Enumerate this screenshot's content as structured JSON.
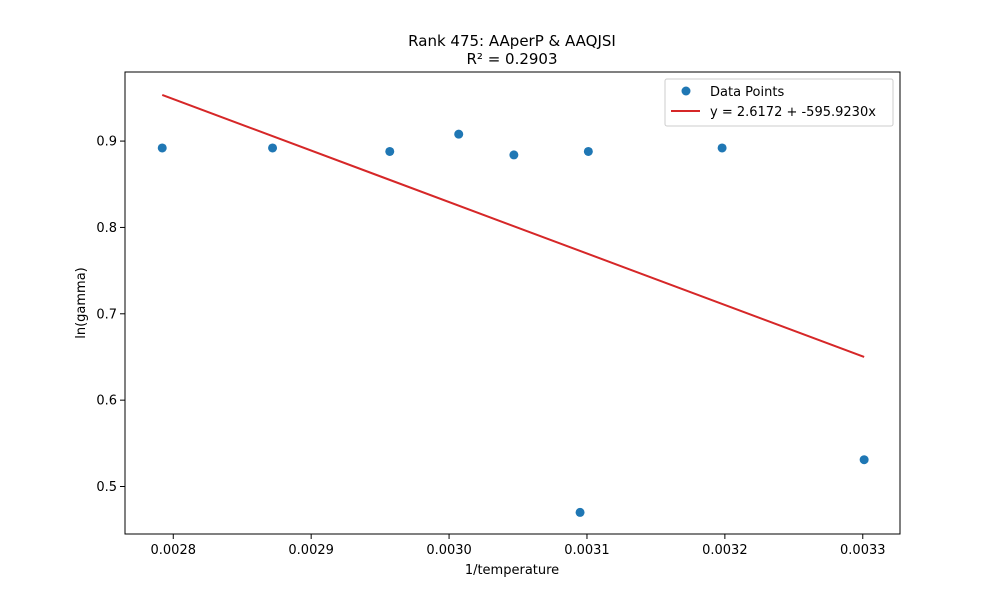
{
  "chart_data": {
    "type": "scatter",
    "title": "Rank 475: AAperP & AAQJSI",
    "subtitle": "R² = 0.2903",
    "xlabel": "1/temperature",
    "ylabel": "ln(gamma)",
    "xlim": [
      0.002765,
      0.003327
    ],
    "ylim": [
      0.445,
      0.98
    ],
    "xticks": [
      0.0028,
      0.0029,
      0.003,
      0.0031,
      0.0032,
      0.0033
    ],
    "xtick_labels": [
      "0.0028",
      "0.0029",
      "0.0030",
      "0.0031",
      "0.0032",
      "0.0033"
    ],
    "yticks": [
      0.5,
      0.6,
      0.7,
      0.8,
      0.9
    ],
    "ytick_labels": [
      "0.5",
      "0.6",
      "0.7",
      "0.8",
      "0.9"
    ],
    "grid": false,
    "legend_position": "top-right",
    "series": [
      {
        "name": "Data Points",
        "kind": "scatter",
        "color": "#1f77b4",
        "x": [
          0.002792,
          0.002872,
          0.002957,
          0.003007,
          0.003047,
          0.003095,
          0.003101,
          0.003198,
          0.003301
        ],
        "y": [
          0.892,
          0.892,
          0.888,
          0.908,
          0.884,
          0.47,
          0.888,
          0.892,
          0.531
        ]
      },
      {
        "name": "y = 2.6172 + -595.9230x",
        "kind": "line",
        "color": "#d62728",
        "intercept": 2.6172,
        "slope": -595.923,
        "x": [
          0.002792,
          0.003301
        ]
      }
    ]
  }
}
